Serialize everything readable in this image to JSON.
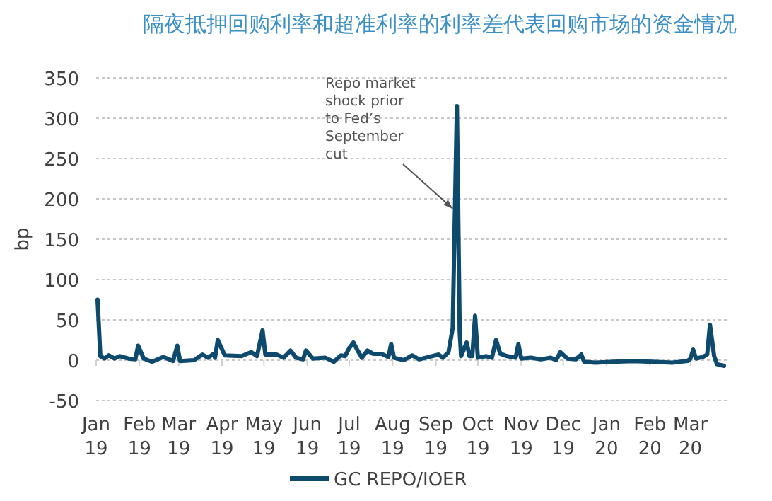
{
  "chart_data": {
    "type": "line",
    "title": "隔夜抵押回购利率和超准利率的利率差代表回购市场的资金情况",
    "ylabel": "bp",
    "xlim": [
      "2019-01-01",
      "2020-03-27"
    ],
    "ylim": [
      -50,
      350
    ],
    "yticks": [
      -50,
      0,
      50,
      100,
      150,
      200,
      250,
      300,
      350
    ],
    "xticks": [
      {
        "value": "2019-01-01",
        "label": "Jan 19"
      },
      {
        "value": "2019-02-01",
        "label": "Feb 19"
      },
      {
        "value": "2019-03-01",
        "label": "Mar 19"
      },
      {
        "value": "2019-04-01",
        "label": "Apr 19"
      },
      {
        "value": "2019-05-01",
        "label": "May 19"
      },
      {
        "value": "2019-06-01",
        "label": "Jun 19"
      },
      {
        "value": "2019-07-01",
        "label": "Jul 19"
      },
      {
        "value": "2019-08-01",
        "label": "Aug 19"
      },
      {
        "value": "2019-09-01",
        "label": "Sep 19"
      },
      {
        "value": "2019-10-01",
        "label": "Oct 19"
      },
      {
        "value": "2019-11-01",
        "label": "Nov 19"
      },
      {
        "value": "2019-12-01",
        "label": "Dec 19"
      },
      {
        "value": "2020-01-01",
        "label": "Jan 20"
      },
      {
        "value": "2020-02-01",
        "label": "Feb 20"
      },
      {
        "value": "2020-03-01",
        "label": "Mar 20"
      }
    ],
    "grid": "y",
    "legend": "bottom",
    "marker": "none",
    "line_style": "solid",
    "annotations": [
      {
        "text": "Repo market shock prior to Fed’s September cut",
        "x": "2019-09-16",
        "y": 188
      }
    ],
    "series": [
      {
        "name": "GC REPO/IOER",
        "color": "#0d4a6e",
        "x": [
          "2019-01-02",
          "2019-01-04",
          "2019-01-07",
          "2019-01-10",
          "2019-01-14",
          "2019-01-18",
          "2019-01-24",
          "2019-01-29",
          "2019-01-31",
          "2019-02-04",
          "2019-02-10",
          "2019-02-18",
          "2019-02-25",
          "2019-02-28",
          "2019-03-02",
          "2019-03-12",
          "2019-03-18",
          "2019-03-22",
          "2019-03-26",
          "2019-03-27",
          "2019-03-29",
          "2019-04-03",
          "2019-04-15",
          "2019-04-22",
          "2019-04-26",
          "2019-04-30",
          "2019-05-02",
          "2019-05-10",
          "2019-05-15",
          "2019-05-20",
          "2019-05-24",
          "2019-05-29",
          "2019-05-31",
          "2019-06-05",
          "2019-06-14",
          "2019-06-20",
          "2019-06-25",
          "2019-06-28",
          "2019-07-01",
          "2019-07-04",
          "2019-07-07",
          "2019-07-10",
          "2019-07-14",
          "2019-07-18",
          "2019-07-24",
          "2019-07-29",
          "2019-07-31",
          "2019-08-02",
          "2019-08-09",
          "2019-08-15",
          "2019-08-20",
          "2019-08-27",
          "2019-09-03",
          "2019-09-06",
          "2019-09-10",
          "2019-09-13",
          "2019-09-16",
          "2019-09-18",
          "2019-09-19",
          "2019-09-23",
          "2019-09-25",
          "2019-09-27",
          "2019-09-29",
          "2019-10-01",
          "2019-10-07",
          "2019-10-11",
          "2019-10-14",
          "2019-10-17",
          "2019-10-22",
          "2019-10-28",
          "2019-10-30",
          "2019-11-01",
          "2019-11-08",
          "2019-11-15",
          "2019-11-22",
          "2019-11-26",
          "2019-11-29",
          "2019-12-04",
          "2019-12-10",
          "2019-12-14",
          "2019-12-16",
          "2019-12-24",
          "2020-01-06",
          "2020-01-20",
          "2020-02-03",
          "2020-02-17",
          "2020-02-28",
          "2020-03-01",
          "2020-03-03",
          "2020-03-05",
          "2020-03-10",
          "2020-03-13",
          "2020-03-15",
          "2020-03-18",
          "2020-03-20",
          "2020-03-25"
        ],
        "values": [
          75,
          5,
          2,
          6,
          2,
          5,
          2,
          1,
          18,
          2,
          -2,
          4,
          -1,
          18,
          -1,
          0,
          7,
          3,
          8,
          3,
          25,
          6,
          5,
          10,
          5,
          37,
          7,
          7,
          3,
          12,
          3,
          1,
          12,
          2,
          3,
          -2,
          6,
          5,
          15,
          22,
          12,
          3,
          12,
          8,
          8,
          4,
          20,
          3,
          0,
          6,
          1,
          4,
          7,
          3,
          10,
          40,
          315,
          35,
          5,
          22,
          5,
          5,
          55,
          3,
          5,
          3,
          25,
          8,
          5,
          3,
          20,
          2,
          3,
          1,
          3,
          0,
          10,
          2,
          1,
          7,
          -2,
          -3,
          -2,
          -1,
          -2,
          -3,
          -1,
          2,
          13,
          2,
          4,
          7,
          44,
          5,
          -5,
          -7
        ]
      }
    ]
  }
}
